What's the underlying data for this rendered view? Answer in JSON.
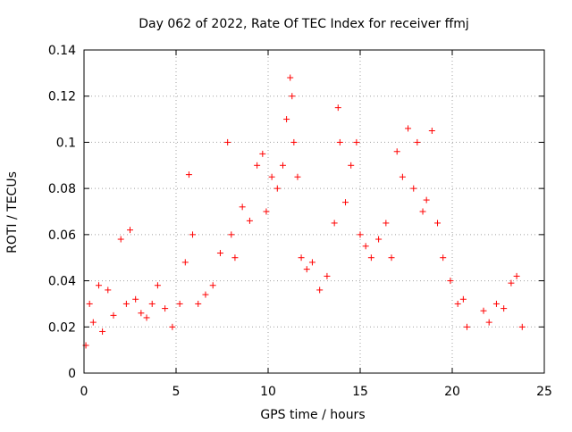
{
  "chart_data": {
    "type": "scatter",
    "title": "Day 062 of 2022, Rate Of TEC Index for receiver ffmj",
    "xlabel": "GPS time / hours",
    "ylabel": "ROTI / TECUs",
    "xlim": [
      0,
      25
    ],
    "ylim": [
      0,
      0.14
    ],
    "x_ticks": [
      "0",
      "5",
      "10",
      "15",
      "20",
      "25"
    ],
    "y_ticks": [
      "0",
      "0.02",
      "0.04",
      "0.06",
      "0.08",
      "0.1",
      "0.12",
      "0.14"
    ],
    "grid": true,
    "marker": "+",
    "series_color": "#ff0000",
    "series": [
      {
        "x": [
          0.1,
          0.3,
          0.5,
          0.8,
          1.0,
          1.3,
          1.6,
          2.0,
          2.3,
          2.5,
          2.8,
          3.1,
          3.4,
          3.7,
          4.0,
          4.4,
          4.8,
          5.2,
          5.5,
          5.7,
          5.9,
          6.2,
          6.6,
          7.0,
          7.4,
          7.8,
          8.0,
          8.2,
          8.6,
          9.0,
          9.4,
          9.7,
          9.9,
          10.2,
          10.5,
          10.8,
          11.0,
          11.2,
          11.3,
          11.4,
          11.6,
          11.8,
          12.1,
          12.4,
          12.8,
          13.2,
          13.6,
          13.8,
          13.9,
          14.2,
          14.5,
          14.8,
          15.0,
          15.3,
          15.6,
          16.0,
          16.4,
          16.7,
          17.0,
          17.3,
          17.6,
          17.9,
          18.1,
          18.4,
          18.6,
          18.9,
          19.2,
          19.5,
          19.9,
          20.3,
          20.6,
          20.8,
          21.7,
          22.0,
          22.4,
          22.8,
          23.2,
          23.5,
          23.8
        ],
        "y": [
          0.012,
          0.03,
          0.022,
          0.038,
          0.018,
          0.036,
          0.025,
          0.058,
          0.03,
          0.062,
          0.032,
          0.026,
          0.024,
          0.03,
          0.038,
          0.028,
          0.02,
          0.03,
          0.048,
          0.086,
          0.06,
          0.03,
          0.034,
          0.038,
          0.052,
          0.1,
          0.06,
          0.05,
          0.072,
          0.066,
          0.09,
          0.095,
          0.07,
          0.085,
          0.08,
          0.09,
          0.11,
          0.128,
          0.12,
          0.1,
          0.085,
          0.05,
          0.045,
          0.048,
          0.036,
          0.042,
          0.065,
          0.115,
          0.1,
          0.074,
          0.09,
          0.1,
          0.06,
          0.055,
          0.05,
          0.058,
          0.065,
          0.05,
          0.096,
          0.085,
          0.106,
          0.08,
          0.1,
          0.07,
          0.075,
          0.105,
          0.065,
          0.05,
          0.04,
          0.03,
          0.032,
          0.02,
          0.027,
          0.022,
          0.03,
          0.028,
          0.039,
          0.042,
          0.02
        ]
      }
    ]
  }
}
